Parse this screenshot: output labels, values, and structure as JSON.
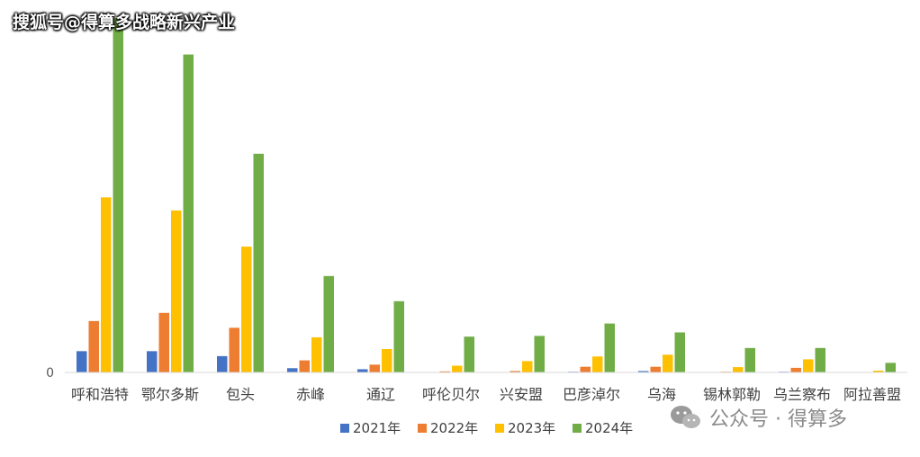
{
  "watermarks": {
    "top": "搜狐号@得算多战略新兴产业",
    "bottom": "公众号 · 得算多",
    "bottom_icon": "wechat-icon"
  },
  "chart_data": {
    "type": "bar",
    "title": "",
    "xlabel": "",
    "ylabel": "",
    "categories": [
      "呼和浩特",
      "鄂尔多斯",
      "包头",
      "赤峰",
      "通辽",
      "呼伦贝尔",
      "兴安盟",
      "巴彦淖尔",
      "乌海",
      "锡林郭勒",
      "乌兰察布",
      "阿拉善盟"
    ],
    "y_ticks": [
      "0"
    ],
    "legend_position": "bottom",
    "grid": false,
    "value_unit": "relative (y-axis unlabeled except 0)",
    "ylim": [
      0,
      100
    ],
    "series": [
      {
        "name": "2021年",
        "color": "#4472C4",
        "values": [
          6.0,
          6.0,
          4.6,
          1.2,
          0.9,
          0.0,
          0.0,
          0.2,
          0.4,
          0.0,
          0.2,
          0.0
        ]
      },
      {
        "name": "2022年",
        "color": "#ED7D31",
        "values": [
          14.5,
          16.8,
          12.6,
          3.4,
          2.2,
          0.3,
          0.4,
          1.6,
          1.6,
          0.2,
          1.3,
          0.0
        ]
      },
      {
        "name": "2023年",
        "color": "#FFC000",
        "values": [
          49.4,
          45.7,
          35.5,
          9.9,
          6.6,
          1.9,
          3.2,
          4.5,
          5.0,
          1.5,
          3.7,
          0.5
        ]
      },
      {
        "name": "2024年",
        "color": "#70AD47",
        "values": [
          100.0,
          89.7,
          61.7,
          27.2,
          20.1,
          10.1,
          10.3,
          13.8,
          11.3,
          6.9,
          6.9,
          2.7
        ]
      }
    ]
  }
}
